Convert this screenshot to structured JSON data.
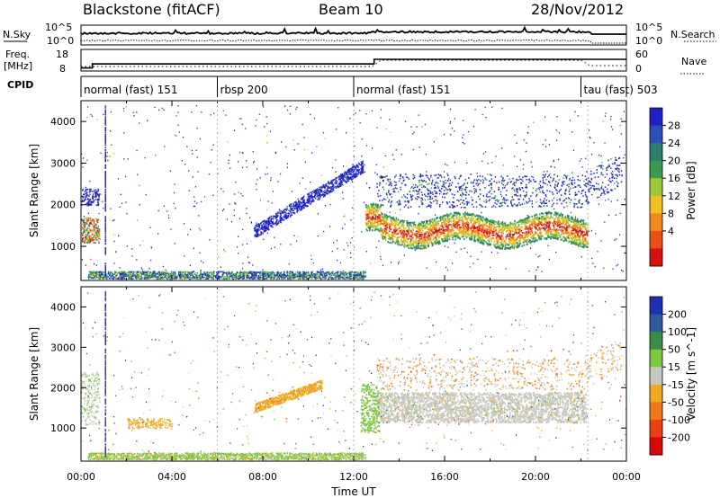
{
  "header": {
    "title": "Blackstone (fitACF)",
    "beam": "Beam 10",
    "date": "28/Nov/2012"
  },
  "nsky_panel": {
    "left_label": "N.Sky",
    "right_label": "N.Search",
    "left_ticks": [
      "10^5",
      "10^0"
    ],
    "right_ticks": [
      "10^5",
      "10^0"
    ]
  },
  "freq_panel": {
    "left_label_line1": "Freq.",
    "left_label_line2": "[MHz]",
    "left_ticks": [
      "18",
      "8"
    ],
    "right_label": "Nave",
    "right_ticks": [
      "60",
      "0"
    ],
    "freq_steps": [
      {
        "from_hour": 0,
        "to_hour": 0.5,
        "mhz": 8
      },
      {
        "from_hour": 0.5,
        "to_hour": 12.9,
        "mhz": 10.6
      },
      {
        "from_hour": 12.9,
        "to_hour": 24,
        "mhz": 13.6
      }
    ]
  },
  "cpid": {
    "label": "CPID",
    "segments": [
      {
        "text": "normal (fast) 151",
        "start_hour": 0
      },
      {
        "text": "rbsp 200",
        "start_hour": 6
      },
      {
        "text": "normal (fast) 151",
        "start_hour": 12
      },
      {
        "text": "tau (fast) 503",
        "start_hour": 22
      }
    ]
  },
  "chart_data": [
    {
      "type": "heatmap",
      "name": "power",
      "ylabel": "Slant Range [km]",
      "ylim": [
        180,
        4500
      ],
      "xlim_hours": [
        0,
        24
      ],
      "yticks": [
        "1000",
        "2000",
        "3000",
        "4000"
      ],
      "colorbar_label": "Power [dB]",
      "colorbar_ticks": [
        "28",
        "24",
        "20",
        "16",
        "12",
        "8",
        "4"
      ],
      "colorbar_colors": [
        "#2020c8",
        "#2a4fb6",
        "#2e7d6e",
        "#3c9a50",
        "#9ac838",
        "#f0c020",
        "#f08a18",
        "#e85018",
        "#d81010"
      ],
      "features": [
        {
          "desc": "near range clutter",
          "h0": 0.3,
          "h1": 12.3,
          "r0": 250,
          "r1": 380,
          "level": 0.35
        },
        {
          "desc": "early patch",
          "h0": 0.0,
          "h1": 0.6,
          "r0": 1200,
          "r1": 1600,
          "level": 0.4
        },
        {
          "desc": "early patch high",
          "h0": 0.1,
          "h1": 0.7,
          "r0": 2100,
          "r1": 2400,
          "level": 0.15
        },
        {
          "desc": "rising arc",
          "h0": 7.6,
          "h1": 12.2,
          "r0": 1500,
          "r1": 2800,
          "level": 0.15
        },
        {
          "desc": "main band",
          "h0": 12.5,
          "h1": 22.2,
          "r0": 1100,
          "r1": 1800,
          "level": 0.8
        },
        {
          "desc": "upper band",
          "h0": 13.5,
          "h1": 22.5,
          "r0": 2000,
          "r1": 2700,
          "level": 0.1
        }
      ]
    },
    {
      "type": "heatmap",
      "name": "velocity",
      "ylabel": "Slant Range [km]",
      "ylim": [
        180,
        4500
      ],
      "xlim_hours": [
        0,
        24
      ],
      "yticks": [
        "1000",
        "2000",
        "3000",
        "4000"
      ],
      "xticks": [
        "00:00",
        "04:00",
        "08:00",
        "12:00",
        "16:00",
        "20:00",
        "00:00"
      ],
      "xlabel": "Time UT",
      "colorbar_label": "Velocity [m s^-1]",
      "colorbar_ticks": [
        "200",
        "100",
        "50",
        "15",
        "-15",
        "-50",
        "-100",
        "-200"
      ],
      "colorbar_colors": [
        "#2030b0",
        "#2e5aa0",
        "#3c8c46",
        "#7cc840",
        "#c8c8c0",
        "#f0a820",
        "#f07818",
        "#e84010",
        "#d80808"
      ],
      "features": [
        {
          "desc": "near range",
          "h0": 0.3,
          "h1": 12.3,
          "r0": 250,
          "r1": 380,
          "color": "#7cc840"
        },
        {
          "desc": "orange arc",
          "h0": 7.6,
          "h1": 10.6,
          "r0": 1500,
          "r1": 2100,
          "color": "#f0a820"
        },
        {
          "desc": "gray band",
          "h0": 13,
          "h1": 22.2,
          "r0": 1100,
          "r1": 1900,
          "color": "#c8c8c0"
        }
      ]
    }
  ]
}
